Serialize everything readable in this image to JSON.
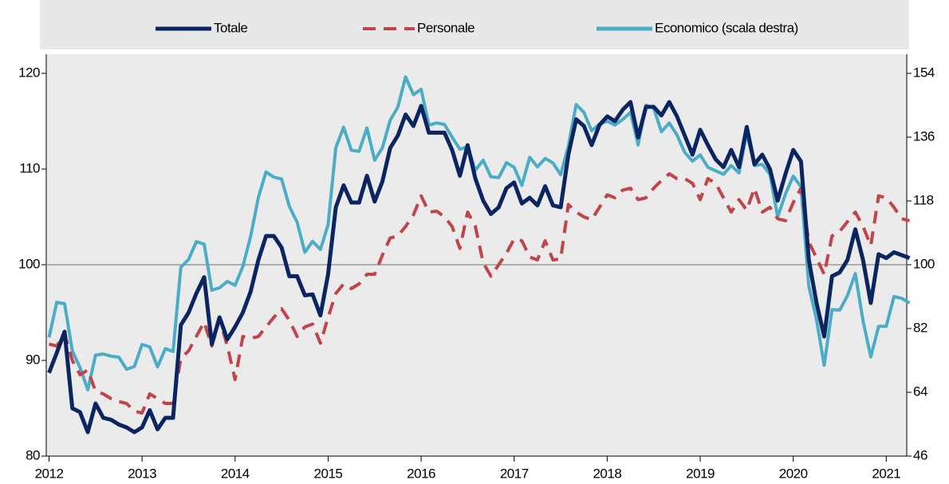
{
  "chart_data": {
    "type": "line",
    "legend": "top",
    "x": [
      2012,
      2012.083,
      2012.167,
      2012.25,
      2012.333,
      2012.417,
      2012.5,
      2012.583,
      2012.667,
      2012.75,
      2012.833,
      2012.917,
      2013,
      2013.083,
      2013.167,
      2013.25,
      2013.333,
      2013.417,
      2013.5,
      2013.583,
      2013.667,
      2013.75,
      2013.833,
      2013.917,
      2014,
      2014.083,
      2014.167,
      2014.25,
      2014.333,
      2014.417,
      2014.5,
      2014.583,
      2014.667,
      2014.75,
      2014.833,
      2014.917,
      2015,
      2015.083,
      2015.167,
      2015.25,
      2015.333,
      2015.417,
      2015.5,
      2015.583,
      2015.667,
      2015.75,
      2015.833,
      2015.917,
      2016,
      2016.083,
      2016.167,
      2016.25,
      2016.333,
      2016.417,
      2016.5,
      2016.583,
      2016.667,
      2016.75,
      2016.833,
      2016.917,
      2017,
      2017.083,
      2017.167,
      2017.25,
      2017.333,
      2017.417,
      2017.5,
      2017.583,
      2017.667,
      2017.75,
      2017.833,
      2017.917,
      2018,
      2018.083,
      2018.167,
      2018.25,
      2018.333,
      2018.417,
      2018.5,
      2018.583,
      2018.667,
      2018.75,
      2018.833,
      2018.917,
      2019,
      2019.083,
      2019.167,
      2019.25,
      2019.333,
      2019.417,
      2019.5,
      2019.583,
      2019.667,
      2019.75,
      2019.833,
      2019.917,
      2020,
      2020.083,
      2020.167,
      2020.25,
      2020.333,
      2020.417,
      2020.5,
      2020.583,
      2020.667,
      2020.75,
      2020.833,
      2020.917,
      2021,
      2021.083,
      2021.167,
      2021.25
    ],
    "series": [
      {
        "name": "Economico (scala destra)",
        "color": "#4bacc6",
        "axis": "y2",
        "values": [
          79.5,
          89.4,
          89,
          75.7,
          71,
          64.7,
          74.5,
          74.8,
          74.2,
          73.9,
          70.5,
          71.3,
          77.5,
          76.8,
          71.2,
          76.3,
          75.5,
          99.3,
          101.5,
          106.5,
          105.8,
          92.8,
          93.5,
          95.3,
          94.2,
          99.5,
          108,
          119,
          126.2,
          124.7,
          124.2,
          116.5,
          112,
          103.5,
          106.6,
          104.3,
          111.3,
          133,
          138.8,
          132.3,
          132,
          138.6,
          129.5,
          133,
          140.8,
          144.5,
          153,
          148,
          149.5,
          139.4,
          140,
          139.6,
          136,
          132.6,
          133.3,
          126.7,
          129.5,
          124.8,
          124.6,
          128.8,
          127.5,
          122.4,
          130.3,
          127.6,
          130,
          128.7,
          125.4,
          133.5,
          145.2,
          143,
          137.8,
          139.7,
          140.5,
          139.4,
          141,
          143,
          133.8,
          145,
          144.2,
          137.5,
          140,
          136.6,
          131.7,
          129.2,
          131,
          127.5,
          126.5,
          125.5,
          128,
          125.9,
          137.1,
          128,
          128.3,
          125.5,
          113.5,
          120,
          125,
          122,
          94,
          84.5,
          71.6,
          87.3,
          87.2,
          91.3,
          97.5,
          84.2,
          74,
          82.6,
          82.6,
          91,
          90.5,
          89.2
        ]
      },
      {
        "name": "Personale",
        "color": "#c0454b",
        "dashed": true,
        "values": [
          91.7,
          91.5,
          92.8,
          90,
          88.5,
          89,
          86.8,
          86.5,
          86,
          85.7,
          85.5,
          84.7,
          84.5,
          86.5,
          86,
          85.5,
          85.5,
          90.2,
          91,
          92.5,
          94,
          91.5,
          94.3,
          91.5,
          88,
          92.5,
          92.3,
          92.5,
          93.5,
          94.5,
          95.4,
          94.2,
          92.5,
          93.5,
          93.8,
          91.8,
          94.5,
          97,
          98,
          97.5,
          98,
          99,
          99,
          101,
          102.8,
          103,
          104,
          105.2,
          107.2,
          105.5,
          105.6,
          105,
          104,
          101.7,
          105.5,
          104,
          100.2,
          98.8,
          100,
          101.2,
          102.7,
          102.5,
          100.8,
          100.5,
          102.5,
          100.5,
          100.6,
          106.3,
          105.5,
          105,
          104.7,
          106,
          107.3,
          107,
          107.8,
          108,
          106.8,
          107,
          108,
          108.8,
          109.5,
          109,
          109,
          108.5,
          106.8,
          109,
          108.5,
          107,
          105.5,
          106.8,
          105.7,
          108,
          105.5,
          106,
          104.8,
          104.6,
          106.5,
          108,
          102.4,
          100.7,
          99,
          103,
          103.5,
          104.5,
          105.5,
          104,
          102,
          107.2,
          107,
          106,
          104.8,
          104.6
        ]
      },
      {
        "name": "Totale",
        "color": "#0b2560",
        "values": [
          88.7,
          90.8,
          93,
          85,
          84.6,
          82.5,
          85.5,
          84,
          83.8,
          83.3,
          83,
          82.5,
          83,
          84.8,
          82.8,
          84,
          84,
          93.7,
          95,
          97,
          98.7,
          91.7,
          94.5,
          92.2,
          93.5,
          95,
          97.2,
          100.5,
          103,
          103,
          101.8,
          98.8,
          98.8,
          96.8,
          96.9,
          94.7,
          99,
          106,
          108.3,
          106.5,
          106.5,
          109.3,
          106.6,
          108.7,
          112.2,
          113.5,
          115.7,
          114.5,
          116.6,
          113.8,
          113.8,
          113.8,
          112,
          109.3,
          112.5,
          109,
          106.7,
          105.3,
          106,
          108,
          108.6,
          106.4,
          107,
          106.2,
          108.2,
          106.2,
          106,
          111.5,
          115.2,
          114.5,
          112.5,
          114.6,
          115.5,
          115,
          116.2,
          117,
          113.3,
          116.5,
          116.5,
          115.6,
          117,
          115.5,
          113.5,
          111.5,
          114.1,
          112.5,
          111,
          110.2,
          112,
          110.2,
          114.4,
          110.5,
          111.5,
          110,
          106.7,
          109.5,
          112,
          110.8,
          100.5,
          96,
          92.5,
          98.8,
          99.2,
          100.5,
          103.7,
          100.5,
          96,
          101.1,
          100.7,
          101.3,
          101,
          100.7
        ]
      }
    ],
    "legend_order": [
      2,
      1,
      0
    ],
    "xlim": [
      2011.97,
      2021.22
    ],
    "xticks": [
      2012,
      2013,
      2014,
      2015,
      2016,
      2017,
      2018,
      2019,
      2020,
      2021
    ],
    "ylim": [
      80,
      122
    ],
    "yticks": [
      80,
      90,
      100,
      110,
      120
    ],
    "y2lim": [
      46,
      159.4
    ],
    "y2ticks": [
      46,
      64,
      82,
      100,
      118,
      136,
      154
    ],
    "reference_line": 100
  }
}
